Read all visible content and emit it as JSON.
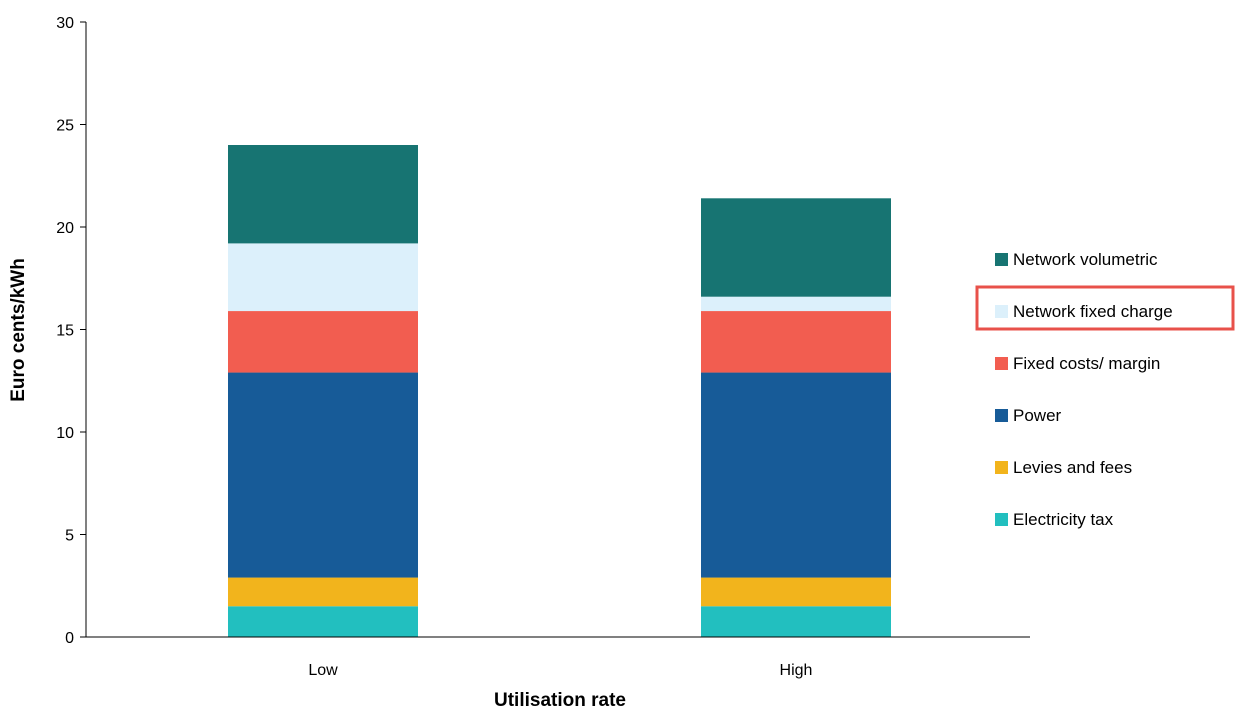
{
  "chart_data": {
    "type": "bar",
    "stacked": true,
    "title": "",
    "xlabel": "Utilisation rate",
    "ylabel": "Euro cents/kWh",
    "ylim": [
      0,
      30
    ],
    "yticks": [
      0,
      5,
      10,
      15,
      20,
      25,
      30
    ],
    "grid": false,
    "legend_position": "right",
    "categories": [
      "Low",
      "High"
    ],
    "series": [
      {
        "name": "Electricity tax",
        "color": "#22bfbf",
        "values": [
          1.5,
          1.5
        ]
      },
      {
        "name": "Levies and fees",
        "color": "#f2b41c",
        "values": [
          1.4,
          1.4
        ]
      },
      {
        "name": "Power",
        "color": "#175b98",
        "values": [
          10.0,
          10.0
        ]
      },
      {
        "name": "Fixed costs/ margin",
        "color": "#f25d50",
        "values": [
          3.0,
          3.0
        ]
      },
      {
        "name": "Network fixed charge",
        "color": "#dcf0fb",
        "values": [
          3.3,
          0.7
        ]
      },
      {
        "name": "Network volumetric",
        "color": "#177472",
        "values": [
          4.8,
          4.8
        ]
      }
    ],
    "highlighted_legend_entry": "Network fixed charge",
    "highlight_color": "#e8514a"
  }
}
